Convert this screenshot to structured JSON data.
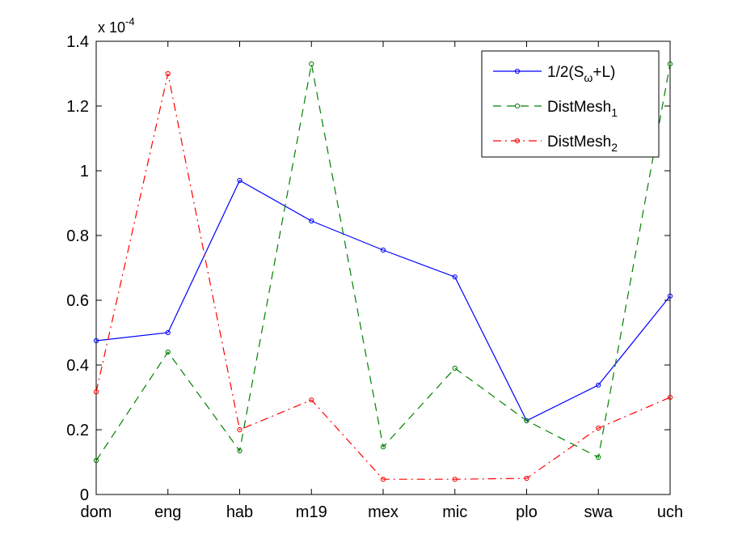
{
  "chart_data": {
    "type": "line",
    "categories": [
      "dom",
      "eng",
      "hab",
      "m19",
      "mex",
      "mic",
      "plo",
      "swa",
      "uch"
    ],
    "ylim": [
      0,
      1.4
    ],
    "yticks": [
      "0",
      "0.2",
      "0.4",
      "0.6",
      "0.8",
      "1",
      "1.2",
      "1.4"
    ],
    "y_multiplier": {
      "base": "x 10",
      "exponent": "-4"
    },
    "grid": false,
    "legend_position": "top-right",
    "series": [
      {
        "name": "1/2(S+L)",
        "name_parts": {
          "prefix": "1/2(S",
          "sub": "ω",
          "suffix": "+L)"
        },
        "color": "#0000ff",
        "style": "solid",
        "values": [
          0.475,
          0.5,
          0.97,
          0.845,
          0.755,
          0.672,
          0.228,
          0.338,
          0.613
        ]
      },
      {
        "name": "DistMesh1",
        "name_parts": {
          "prefix": "DistMesh",
          "sub": "1",
          "suffix": ""
        },
        "color": "#008000",
        "style": "dashed",
        "values": [
          0.105,
          0.44,
          0.135,
          1.33,
          0.147,
          0.39,
          0.228,
          0.115,
          1.33
        ]
      },
      {
        "name": "DistMesh2",
        "name_parts": {
          "prefix": "DistMesh",
          "sub": "2",
          "suffix": ""
        },
        "color": "#ff0000",
        "style": "dashdot",
        "values": [
          0.317,
          1.3,
          0.2,
          0.292,
          0.047,
          0.047,
          0.05,
          0.205,
          0.3
        ]
      }
    ]
  }
}
